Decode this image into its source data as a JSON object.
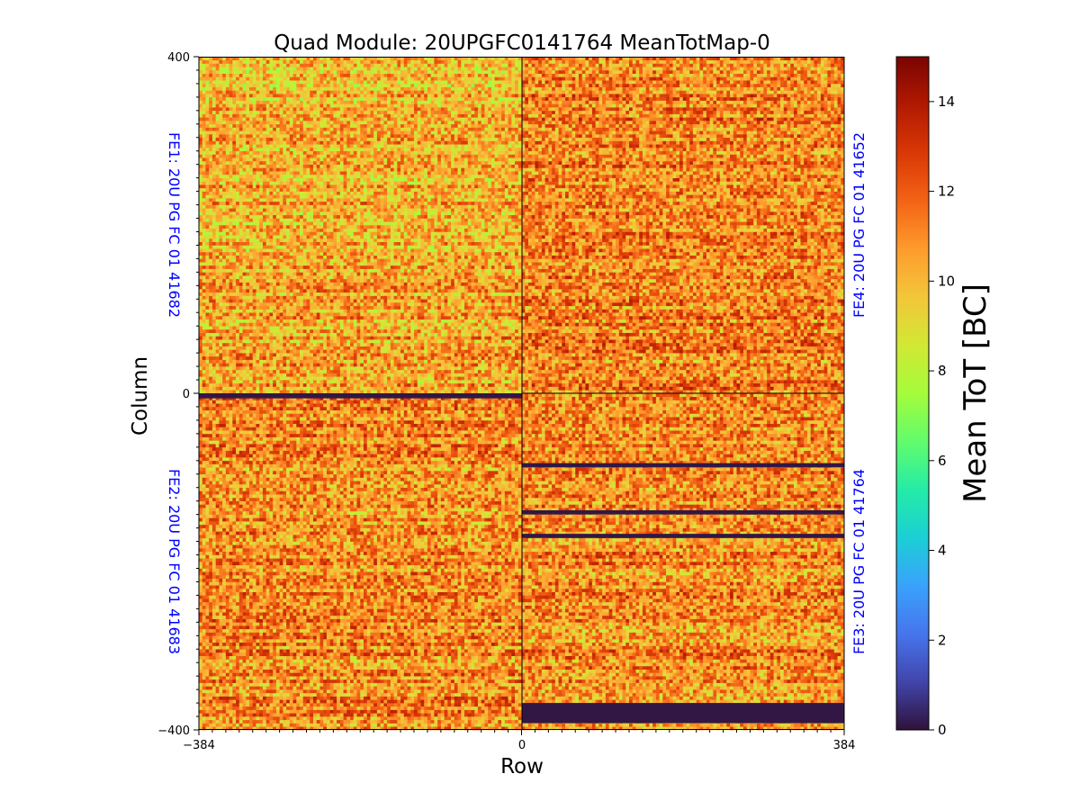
{
  "chart_data": {
    "type": "heatmap",
    "title": "Quad Module: 20UPGFC0141764 MeanTotMap-0",
    "xlabel": "Row",
    "ylabel": "Column",
    "xlim": [
      -384,
      384
    ],
    "ylim": [
      -400,
      400
    ],
    "x_ticks": [
      -384,
      0,
      384
    ],
    "x_tick_labels": [
      "−384",
      "0",
      "384"
    ],
    "y_ticks": [
      -400,
      0,
      400
    ],
    "y_tick_labels": [
      "−400",
      "0",
      "400"
    ],
    "colorbar": {
      "label": "Mean ToT [BC]",
      "range": [
        0,
        15
      ],
      "ticks": [
        0,
        2,
        4,
        6,
        8,
        10,
        12,
        14
      ],
      "tick_labels": [
        "0",
        "2",
        "4",
        "6",
        "8",
        "10",
        "12",
        "14"
      ],
      "colormap": "turbo"
    },
    "typical_value_range": [
      8,
      14
    ],
    "chips": [
      {
        "id": "FE1",
        "label": "FE1: 20U PG FC 01 41682",
        "quadrant": "top-left",
        "x_range": [
          -384,
          0
        ],
        "y_range": [
          0,
          400
        ],
        "label_color": "#0000ff",
        "dead_bands_y": []
      },
      {
        "id": "FE2",
        "label": "FE2: 20U PG FC 01 41683",
        "quadrant": "bottom-left",
        "x_range": [
          -384,
          0
        ],
        "y_range": [
          -400,
          0
        ],
        "label_color": "#0000ff",
        "dead_bands_y": [
          [
            -6,
            0
          ]
        ]
      },
      {
        "id": "FE3",
        "label": "FE3: 20U PG FC 01 41764",
        "quadrant": "bottom-right",
        "x_range": [
          0,
          384
        ],
        "y_range": [
          -400,
          0
        ],
        "label_color": "#0000ff",
        "dead_bands_y": [
          [
            -88,
            -83
          ],
          [
            -144,
            -139
          ],
          [
            -172,
            -167
          ],
          [
            -392,
            -368
          ]
        ]
      },
      {
        "id": "FE4",
        "label": "FE4: 20U PG FC 01 41652",
        "quadrant": "top-right",
        "x_range": [
          0,
          384
        ],
        "y_range": [
          0,
          400
        ],
        "label_color": "#0000ff",
        "dead_bands_y": []
      }
    ]
  }
}
